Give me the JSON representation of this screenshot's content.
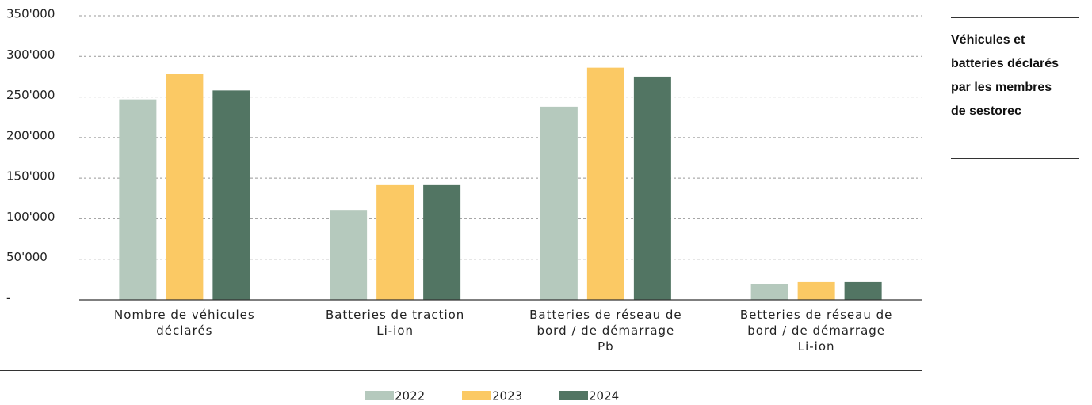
{
  "chart_data": {
    "type": "bar",
    "title": "Véhicules et\nbatteries déclarés\npar les membres\nde sestorec",
    "categories": [
      "Nombre de véhicules\ndéclarés",
      "Batteries de traction\nLi-ion",
      "Batteries de réseau de\nbord / de démarrage\nPb",
      "Betteries de réseau de\nbord / de démarrage\nLi-ion"
    ],
    "series": [
      {
        "name": "2022",
        "color": "#b5c9bd",
        "values": [
          247000,
          110000,
          238000,
          19500
        ]
      },
      {
        "name": "2023",
        "color": "#fbc964",
        "values": [
          278000,
          141500,
          286000,
          22500
        ]
      },
      {
        "name": "2024",
        "color": "#527563",
        "values": [
          258000,
          141500,
          275000,
          22500
        ]
      }
    ],
    "ylim": [
      0,
      350000
    ],
    "yticks": [
      {
        "value": 0,
        "label": "-"
      },
      {
        "value": 50000,
        "label": "50'000"
      },
      {
        "value": 100000,
        "label": "100'000"
      },
      {
        "value": 150000,
        "label": "150'000"
      },
      {
        "value": 200000,
        "label": "200'000"
      },
      {
        "value": 250000,
        "label": "250'000"
      },
      {
        "value": 300000,
        "label": "300'000"
      },
      {
        "value": 350000,
        "label": "350'000"
      }
    ],
    "grid": true
  }
}
